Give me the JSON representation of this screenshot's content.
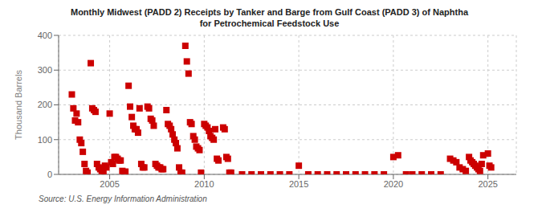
{
  "chart_data": {
    "type": "scatter",
    "title": "Monthly Midwest (PADD 2) Receipts by Tanker and Barge from Gulf Coast (PADD 3) of Naphtha\nfor Petrochemical Feedstock Use",
    "y_label": "Thousand Barrels",
    "annotations": [
      "Source: U.S. Energy Information Administration"
    ],
    "color": "#cc0000",
    "marker": "square",
    "grid": true,
    "xlim": [
      2002.3,
      2026.5
    ],
    "xticks": [
      2005,
      2010,
      2015,
      2020,
      2025
    ],
    "ylim": [
      0,
      400
    ],
    "yticks": [
      0,
      100,
      200,
      300,
      400
    ],
    "x": [
      2003.0,
      2003.08,
      2003.17,
      2003.25,
      2003.33,
      2003.42,
      2003.5,
      2003.58,
      2003.67,
      2003.75,
      2003.83,
      2004.0,
      2004.08,
      2004.17,
      2004.25,
      2004.33,
      2004.42,
      2004.5,
      2004.58,
      2004.67,
      2004.75,
      2004.83,
      2005.0,
      2005.08,
      2005.17,
      2005.25,
      2005.33,
      2005.42,
      2005.5,
      2005.58,
      2005.67,
      2005.75,
      2005.83,
      2006.0,
      2006.08,
      2006.17,
      2006.25,
      2006.33,
      2006.42,
      2006.5,
      2006.58,
      2006.67,
      2006.75,
      2006.83,
      2007.0,
      2007.08,
      2007.17,
      2007.25,
      2007.33,
      2007.42,
      2007.5,
      2007.58,
      2007.67,
      2007.75,
      2007.83,
      2008.0,
      2008.08,
      2008.17,
      2008.25,
      2008.33,
      2008.42,
      2008.5,
      2008.58,
      2008.67,
      2008.75,
      2008.83,
      2009.0,
      2009.08,
      2009.17,
      2009.25,
      2009.33,
      2009.42,
      2009.5,
      2009.58,
      2009.67,
      2009.75,
      2009.83,
      2010.0,
      2010.08,
      2010.17,
      2010.25,
      2010.33,
      2010.42,
      2010.5,
      2010.58,
      2010.67,
      2010.75,
      2011.0,
      2011.08,
      2011.17,
      2011.25,
      2011.33,
      2011.42,
      2012.0,
      2012.5,
      2013.0,
      2013.5,
      2014.0,
      2014.5,
      2015.0,
      2015.5,
      2016.0,
      2016.5,
      2017.0,
      2017.5,
      2018.0,
      2018.5,
      2019.0,
      2019.5,
      2020.0,
      2020.25,
      2020.67,
      2021.0,
      2021.5,
      2022.0,
      2022.5,
      2023.0,
      2023.17,
      2023.33,
      2023.5,
      2023.67,
      2023.83,
      2024.0,
      2024.08,
      2024.17,
      2024.25,
      2024.33,
      2024.42,
      2024.5,
      2024.58,
      2024.67,
      2024.75,
      2025.0,
      2025.08,
      2025.17
    ],
    "values": [
      230,
      190,
      155,
      175,
      150,
      100,
      90,
      65,
      30,
      10,
      5,
      320,
      190,
      185,
      180,
      30,
      20,
      15,
      10,
      5,
      25,
      20,
      175,
      35,
      30,
      50,
      50,
      45,
      40,
      40,
      10,
      5,
      8,
      255,
      195,
      165,
      140,
      130,
      130,
      120,
      190,
      30,
      20,
      20,
      195,
      190,
      160,
      155,
      140,
      30,
      25,
      20,
      20,
      15,
      15,
      185,
      145,
      140,
      130,
      115,
      100,
      90,
      75,
      20,
      5,
      5,
      370,
      325,
      290,
      150,
      145,
      110,
      100,
      80,
      75,
      70,
      5,
      145,
      140,
      135,
      125,
      110,
      105,
      100,
      130,
      45,
      40,
      135,
      130,
      50,
      45,
      5,
      5,
      0,
      0,
      0,
      0,
      0,
      0,
      25,
      0,
      0,
      0,
      0,
      0,
      0,
      0,
      0,
      0,
      50,
      55,
      0,
      0,
      0,
      0,
      0,
      45,
      40,
      35,
      20,
      15,
      10,
      50,
      40,
      35,
      30,
      25,
      20,
      15,
      10,
      30,
      55,
      60,
      25,
      20
    ]
  }
}
